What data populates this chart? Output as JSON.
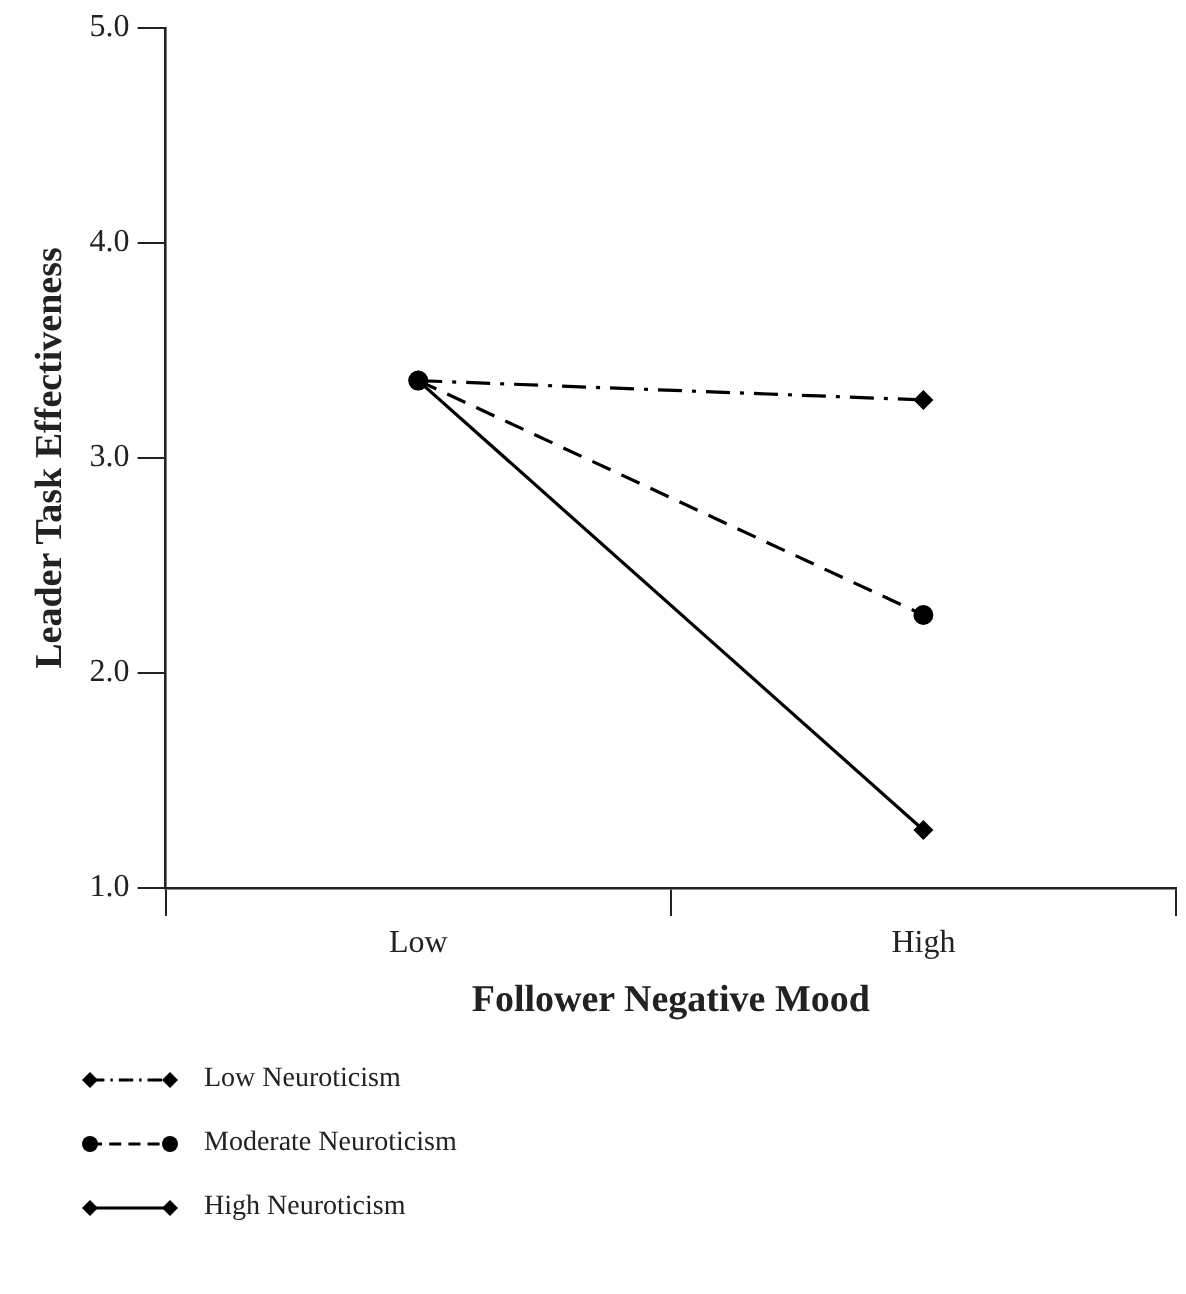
{
  "chart_data": {
    "type": "line",
    "xlabel": "Follower Negative Mood",
    "ylabel": "Leader Task Effectiveness",
    "categories": [
      "Low",
      "High"
    ],
    "ylim": [
      1,
      5
    ],
    "yticks": [
      {
        "value": 1,
        "label": "1.0"
      },
      {
        "value": 2,
        "label": "2.0"
      },
      {
        "value": 3,
        "label": "3.0"
      },
      {
        "value": 4,
        "label": "4.0"
      },
      {
        "value": 5,
        "label": "5.0"
      }
    ],
    "grid": false,
    "legend": "bottom left",
    "series": [
      {
        "name": "Low Neuroticism",
        "color": "#000000",
        "values": [
          3.36,
          3.27
        ],
        "marker": "diamond",
        "line_style": "dashdot"
      },
      {
        "name": "Moderate Neuroticism",
        "color": "#000000",
        "values": [
          3.36,
          2.27
        ],
        "marker": "circle",
        "line_style": "dashed"
      },
      {
        "name": "High Neuroticism",
        "color": "#000000",
        "values": [
          3.36,
          1.27
        ],
        "marker": "diamond",
        "line_style": "solid"
      }
    ]
  }
}
